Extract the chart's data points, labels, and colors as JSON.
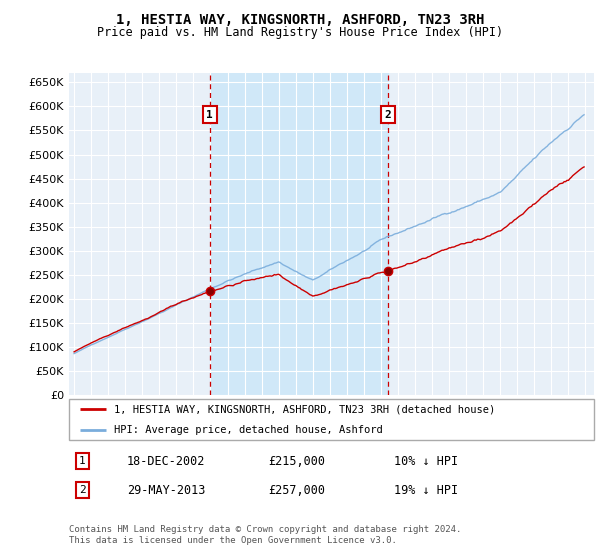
{
  "title": "1, HESTIA WAY, KINGSNORTH, ASHFORD, TN23 3RH",
  "subtitle": "Price paid vs. HM Land Registry's House Price Index (HPI)",
  "legend_line1": "1, HESTIA WAY, KINGSNORTH, ASHFORD, TN23 3RH (detached house)",
  "legend_line2": "HPI: Average price, detached house, Ashford",
  "footer": "Contains HM Land Registry data © Crown copyright and database right 2024.\nThis data is licensed under the Open Government Licence v3.0.",
  "sale1_date": "18-DEC-2002",
  "sale1_price": 215000,
  "sale1_label": "£215,000",
  "sale1_pct": "10% ↓ HPI",
  "sale2_date": "29-MAY-2013",
  "sale2_price": 257000,
  "sale2_label": "£257,000",
  "sale2_pct": "19% ↓ HPI",
  "sale1_x": 2002.96,
  "sale2_x": 2013.41,
  "ylim_min": 0,
  "ylim_max": 670000,
  "xlim_start": 1994.7,
  "xlim_end": 2025.5,
  "red_color": "#cc0000",
  "blue_color": "#7aaddc",
  "shade_color": "#d0e8f8",
  "bg_color": "#e8f0f8",
  "grid_color": "#ffffff",
  "vline_color": "#cc0000"
}
